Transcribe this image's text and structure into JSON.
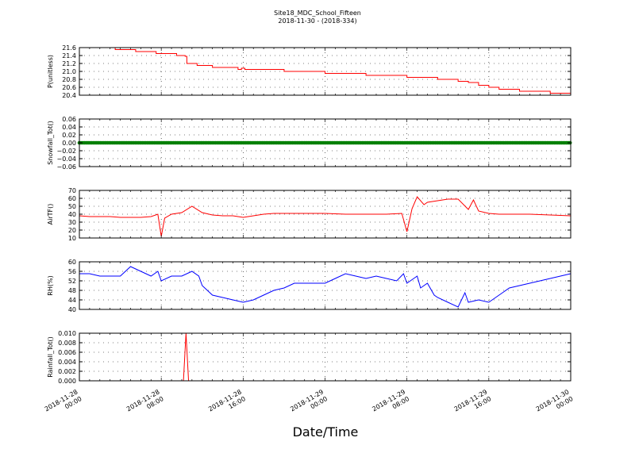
{
  "title_line1": "Site18_MDC_School_Fifteen",
  "title_line2": "2018-11-30 - (2018-334)",
  "xlabel": "Date/Time",
  "x_ticks": [
    {
      "line1": "2018-11-28",
      "line2": "00:00"
    },
    {
      "line1": "2018-11-28",
      "line2": "08:00"
    },
    {
      "line1": "2018-11-28",
      "line2": "16:00"
    },
    {
      "line1": "2018-11-29",
      "line2": "00:00"
    },
    {
      "line1": "2018-11-29",
      "line2": "08:00"
    },
    {
      "line1": "2018-11-29",
      "line2": "16:00"
    },
    {
      "line1": "2018-11-30",
      "line2": "00:00"
    }
  ],
  "chart_data": [
    {
      "type": "line",
      "ylabel": "P(unitless)",
      "ylim": [
        20.4,
        21.6
      ],
      "yticks": [
        "21.6",
        "21.4",
        "21.2",
        "21.0",
        "20.8",
        "20.6",
        "20.4"
      ],
      "color": "#ff0000",
      "grid": true,
      "x": [
        "2018-11-28 03:00",
        "2018-11-28 03:30",
        "2018-11-28 05:30",
        "2018-11-28 07:30",
        "2018-11-28 09:30",
        "2018-11-28 10:20",
        "2018-11-28 10:30",
        "2018-11-28 11:30",
        "2018-11-28 13:00",
        "2018-11-28 15:30",
        "2018-11-28 15:50",
        "2018-11-28 16:10",
        "2018-11-28 18:00",
        "2018-11-28 20:00",
        "2018-11-28 22:00",
        "2018-11-29 00:00",
        "2018-11-29 02:00",
        "2018-11-29 04:00",
        "2018-11-29 06:00",
        "2018-11-29 08:00",
        "2018-11-29 10:00",
        "2018-11-29 11:00",
        "2018-11-29 12:00",
        "2018-11-29 13:00",
        "2018-11-29 14:00",
        "2018-11-29 15:00",
        "2018-11-29 16:00",
        "2018-11-29 17:00",
        "2018-11-29 18:00",
        "2018-11-29 19:00",
        "2018-11-29 20:00",
        "2018-11-29 22:00",
        "2018-11-30 00:00"
      ],
      "y": [
        21.6,
        21.55,
        21.5,
        21.45,
        21.4,
        21.38,
        21.2,
        21.15,
        21.1,
        21.05,
        21.08,
        21.05,
        21.05,
        21.0,
        21.0,
        20.95,
        20.95,
        20.9,
        20.9,
        20.85,
        20.85,
        20.8,
        20.8,
        20.75,
        20.72,
        20.65,
        20.6,
        20.55,
        20.55,
        20.5,
        20.5,
        20.45,
        20.45
      ]
    },
    {
      "type": "scatter",
      "ylabel": "Snowfall_Tot()",
      "ylim": [
        -0.06,
        0.06
      ],
      "yticks": [
        "0.06",
        "0.04",
        "0.02",
        "0.00",
        "−0.02",
        "−0.04",
        "−0.06"
      ],
      "color": "#008000",
      "grid": true,
      "x_start": "2018-11-28 00:00",
      "x_end": "2018-11-30 00:00",
      "value": 0.0
    },
    {
      "type": "line",
      "ylabel": "AirTF()",
      "ylim": [
        10,
        70
      ],
      "yticks": [
        "70",
        "60",
        "50",
        "40",
        "30",
        "20",
        "10"
      ],
      "color": "#ff0000",
      "grid": true,
      "x": [
        "2018-11-28 00:00",
        "2018-11-28 01:00",
        "2018-11-28 02:00",
        "2018-11-28 03:00",
        "2018-11-28 04:00",
        "2018-11-28 05:00",
        "2018-11-28 06:00",
        "2018-11-28 07:00",
        "2018-11-28 07:40",
        "2018-11-28 08:00",
        "2018-11-28 08:20",
        "2018-11-28 09:00",
        "2018-11-28 10:00",
        "2018-11-28 11:00",
        "2018-11-28 12:00",
        "2018-11-28 13:00",
        "2018-11-28 14:00",
        "2018-11-28 15:00",
        "2018-11-28 16:00",
        "2018-11-28 17:00",
        "2018-11-28 18:00",
        "2018-11-28 19:00",
        "2018-11-28 20:00",
        "2018-11-28 22:00",
        "2018-11-29 00:00",
        "2018-11-29 02:00",
        "2018-11-29 04:00",
        "2018-11-29 06:00",
        "2018-11-29 07:30",
        "2018-11-29 08:00",
        "2018-11-29 08:30",
        "2018-11-29 09:00",
        "2018-11-29 09:40",
        "2018-11-29 10:00",
        "2018-11-29 11:00",
        "2018-11-29 12:00",
        "2018-11-29 13:00",
        "2018-11-29 14:00",
        "2018-11-29 14:30",
        "2018-11-29 15:00",
        "2018-11-29 16:00",
        "2018-11-29 17:00",
        "2018-11-29 20:00",
        "2018-11-30 00:00"
      ],
      "y": [
        38,
        37,
        37,
        37,
        36,
        36,
        36,
        37,
        40,
        12,
        35,
        40,
        42,
        50,
        42,
        39,
        38,
        38,
        36,
        38,
        40,
        41,
        41,
        41,
        41,
        40,
        40,
        40,
        41,
        18,
        47,
        62,
        52,
        55,
        57,
        59,
        59,
        46,
        58,
        44,
        41,
        40,
        40,
        38
      ]
    },
    {
      "type": "line",
      "ylabel": "RH(%)",
      "ylim": [
        40,
        60
      ],
      "yticks": [
        "60",
        "56",
        "52",
        "48",
        "44",
        "40"
      ],
      "color": "#0000ff",
      "grid": true,
      "x": [
        "2018-11-28 00:00",
        "2018-11-28 01:00",
        "2018-11-28 02:00",
        "2018-11-28 03:00",
        "2018-11-28 04:00",
        "2018-11-28 05:00",
        "2018-11-28 06:00",
        "2018-11-28 07:00",
        "2018-11-28 07:40",
        "2018-11-28 08:00",
        "2018-11-28 09:00",
        "2018-11-28 10:00",
        "2018-11-28 11:00",
        "2018-11-28 11:40",
        "2018-11-28 12:00",
        "2018-11-28 13:00",
        "2018-11-28 14:00",
        "2018-11-28 15:00",
        "2018-11-28 16:00",
        "2018-11-28 17:00",
        "2018-11-28 18:00",
        "2018-11-28 19:00",
        "2018-11-28 20:00",
        "2018-11-28 21:00",
        "2018-11-28 22:00",
        "2018-11-29 00:00",
        "2018-11-29 01:00",
        "2018-11-29 02:00",
        "2018-11-29 03:00",
        "2018-11-29 04:00",
        "2018-11-29 05:00",
        "2018-11-29 06:00",
        "2018-11-29 07:00",
        "2018-11-29 07:40",
        "2018-11-29 08:00",
        "2018-11-29 09:00",
        "2018-11-29 09:20",
        "2018-11-29 10:00",
        "2018-11-29 10:40",
        "2018-11-29 11:00",
        "2018-11-29 12:00",
        "2018-11-29 13:00",
        "2018-11-29 13:40",
        "2018-11-29 14:00",
        "2018-11-29 15:00",
        "2018-11-29 16:00",
        "2018-11-29 17:00",
        "2018-11-29 18:00",
        "2018-11-29 20:00",
        "2018-11-29 22:00",
        "2018-11-30 00:00"
      ],
      "y": [
        55,
        55,
        54,
        54,
        54,
        58,
        56,
        54,
        56,
        52,
        54,
        54,
        56,
        54,
        50,
        46,
        45,
        44,
        43,
        44,
        46,
        48,
        49,
        51,
        51,
        51,
        53,
        55,
        54,
        53,
        54,
        53,
        52,
        55,
        51,
        54,
        49,
        51,
        46,
        45,
        43,
        41,
        47,
        43,
        44,
        43,
        46,
        49,
        51,
        53,
        55
      ]
    },
    {
      "type": "line",
      "ylabel": "Rainfall_Tot()",
      "ylim": [
        0.0,
        0.01
      ],
      "yticks": [
        "0.010",
        "0.008",
        "0.006",
        "0.004",
        "0.002",
        "0.000"
      ],
      "color": "#ff0000",
      "grid": true,
      "x": [
        "2018-11-28 00:00",
        "2018-11-28 10:10",
        "2018-11-28 10:25",
        "2018-11-28 10:40",
        "2018-11-30 00:00"
      ],
      "y": [
        0.0,
        0.0,
        0.01,
        0.0,
        0.0
      ]
    }
  ]
}
